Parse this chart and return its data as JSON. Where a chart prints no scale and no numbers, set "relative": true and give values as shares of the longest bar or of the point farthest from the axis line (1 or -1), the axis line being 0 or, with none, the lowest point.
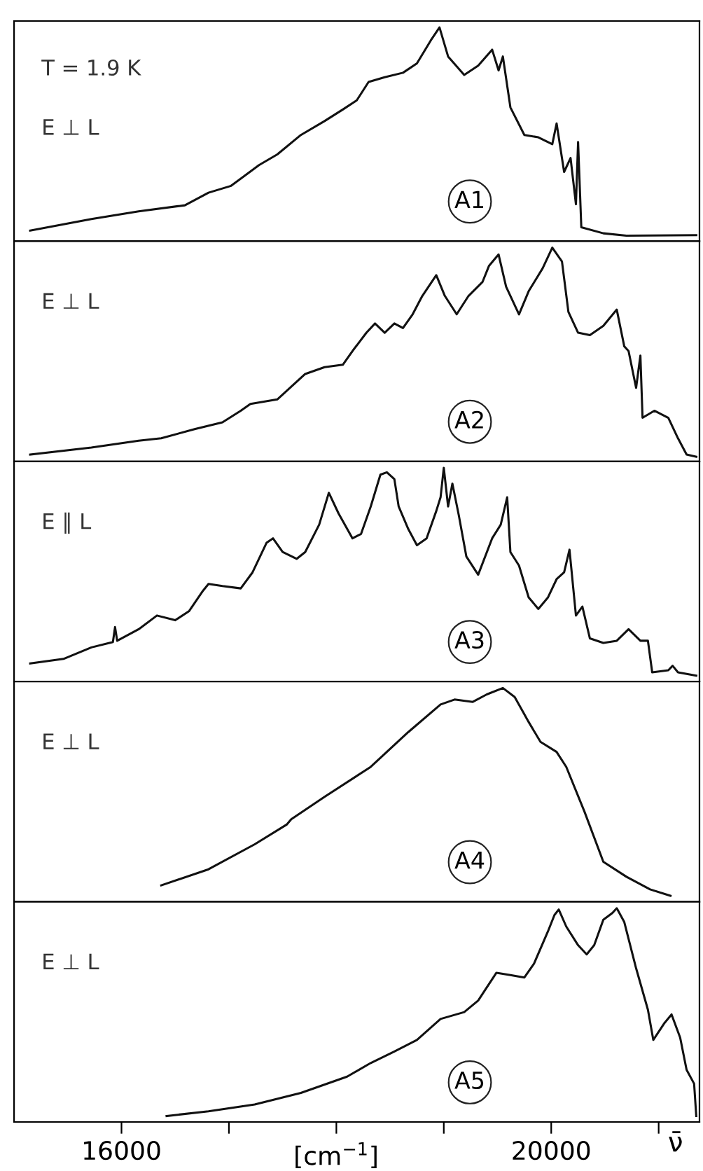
{
  "chart_data": [
    {
      "type": "line",
      "relative": true,
      "tick_labels": false,
      "xlim": [
        15000,
        21380
      ],
      "xticks": [
        {
          "value": 16000,
          "label": null
        },
        {
          "value": 17000,
          "label": null
        },
        {
          "value": 18000,
          "label": null
        },
        {
          "value": 19000,
          "label": null
        },
        {
          "value": 20000,
          "label": null
        },
        {
          "value": 21000,
          "label": null
        }
      ],
      "annotations": [
        "T = 1.9 K",
        "E ⊥ L",
        "A1"
      ],
      "series": [
        {
          "color": "#111111",
          "x": [
            15150,
            15720,
            16160,
            16590,
            16810,
            17020,
            17280,
            17450,
            17670,
            17890,
            18060,
            18190,
            18300,
            18450,
            18620,
            18750,
            18880,
            18960,
            19040,
            19190,
            19320,
            19450,
            19510,
            19550,
            19620,
            19750,
            19880,
            20010,
            20050,
            20120,
            20180,
            20230,
            20250,
            20280,
            20485,
            20700,
            21350
          ],
          "values": [
            0.05,
            0.104,
            0.14,
            0.168,
            0.227,
            0.259,
            0.356,
            0.406,
            0.497,
            0.562,
            0.616,
            0.659,
            0.745,
            0.767,
            0.788,
            0.832,
            0.94,
            1.0,
            0.864,
            0.778,
            0.821,
            0.896,
            0.799,
            0.864,
            0.626,
            0.497,
            0.486,
            0.454,
            0.551,
            0.324,
            0.389,
            0.173,
            0.464,
            0.065,
            0.037,
            0.026,
            0.028
          ]
        }
      ]
    },
    {
      "type": "line",
      "relative": true,
      "tick_labels": false,
      "xlim": [
        15000,
        21380
      ],
      "xticks": [
        {
          "value": 16000,
          "label": null
        },
        {
          "value": 17000,
          "label": null
        },
        {
          "value": 18000,
          "label": null
        },
        {
          "value": 19000,
          "label": null
        },
        {
          "value": 20000,
          "label": null
        },
        {
          "value": 21000,
          "label": null
        }
      ],
      "annotations": [
        "E ⊥ L",
        "A2"
      ],
      "series": [
        {
          "color": "#111111",
          "x": [
            15150,
            15720,
            16160,
            16370,
            16680,
            16940,
            17110,
            17200,
            17450,
            17710,
            17890,
            18060,
            18150,
            18280,
            18360,
            18450,
            18540,
            18620,
            18710,
            18800,
            18930,
            19010,
            19120,
            19230,
            19360,
            19420,
            19510,
            19580,
            19700,
            19790,
            19920,
            20010,
            20100,
            20160,
            20250,
            20360,
            20485,
            20610,
            20680,
            20720,
            20790,
            20830,
            20850,
            20960,
            21090,
            21180,
            21260,
            21350
          ],
          "values": [
            0.032,
            0.065,
            0.097,
            0.108,
            0.151,
            0.183,
            0.237,
            0.269,
            0.29,
            0.409,
            0.441,
            0.452,
            0.516,
            0.602,
            0.645,
            0.602,
            0.645,
            0.624,
            0.688,
            0.774,
            0.871,
            0.774,
            0.688,
            0.774,
            0.839,
            0.914,
            0.968,
            0.817,
            0.688,
            0.796,
            0.903,
            1.0,
            0.935,
            0.699,
            0.602,
            0.591,
            0.634,
            0.71,
            0.538,
            0.516,
            0.344,
            0.495,
            0.204,
            0.237,
            0.204,
            0.108,
            0.032,
            0.022
          ]
        }
      ]
    },
    {
      "type": "line",
      "relative": true,
      "tick_labels": false,
      "xlim": [
        15000,
        21380
      ],
      "xticks": [
        {
          "value": 16000,
          "label": null
        },
        {
          "value": 17000,
          "label": null
        },
        {
          "value": 18000,
          "label": null
        },
        {
          "value": 19000,
          "label": null
        },
        {
          "value": 20000,
          "label": null
        },
        {
          "value": 21000,
          "label": null
        }
      ],
      "annotations": [
        "E ∥ L",
        "A3"
      ],
      "series": [
        {
          "color": "#111111",
          "x": [
            15150,
            15460,
            15720,
            15920,
            15940,
            15960,
            16160,
            16330,
            16500,
            16630,
            16760,
            16810,
            16940,
            17110,
            17220,
            17350,
            17410,
            17500,
            17630,
            17710,
            17840,
            17930,
            18020,
            18150,
            18230,
            18320,
            18410,
            18470,
            18540,
            18580,
            18670,
            18750,
            18840,
            18930,
            18970,
            19000,
            19040,
            19080,
            19140,
            19210,
            19320,
            19450,
            19530,
            19590,
            19620,
            19700,
            19790,
            19880,
            19970,
            20050,
            20120,
            20170,
            20230,
            20290,
            20360,
            20485,
            20610,
            20720,
            20830,
            20900,
            20940,
            21090,
            21130,
            21180,
            21350
          ],
          "values": [
            0.085,
            0.106,
            0.16,
            0.185,
            0.255,
            0.191,
            0.245,
            0.309,
            0.287,
            0.33,
            0.426,
            0.457,
            0.447,
            0.436,
            0.511,
            0.649,
            0.67,
            0.606,
            0.574,
            0.606,
            0.734,
            0.883,
            0.787,
            0.67,
            0.691,
            0.819,
            0.968,
            0.979,
            0.947,
            0.819,
            0.713,
            0.638,
            0.67,
            0.798,
            0.862,
            1.0,
            0.819,
            0.926,
            0.777,
            0.585,
            0.5,
            0.67,
            0.734,
            0.862,
            0.606,
            0.543,
            0.394,
            0.34,
            0.394,
            0.479,
            0.511,
            0.617,
            0.309,
            0.351,
            0.202,
            0.181,
            0.191,
            0.245,
            0.191,
            0.191,
            0.043,
            0.053,
            0.074,
            0.043,
            0.028
          ]
        }
      ]
    },
    {
      "type": "line",
      "relative": true,
      "tick_labels": false,
      "xlim": [
        15000,
        21380
      ],
      "xticks": [
        {
          "value": 16000,
          "label": null
        },
        {
          "value": 17000,
          "label": null
        },
        {
          "value": 18000,
          "label": null
        },
        {
          "value": 19000,
          "label": null
        },
        {
          "value": 20000,
          "label": null
        },
        {
          "value": 21000,
          "label": null
        }
      ],
      "annotations": [
        "E ⊥ L",
        "A4"
      ],
      "series": [
        {
          "color": "#111111",
          "x": [
            16370,
            16810,
            17240,
            17540,
            17580,
            17890,
            18320,
            18670,
            18970,
            19100,
            19270,
            19400,
            19550,
            19660,
            19790,
            19900,
            20050,
            20140,
            20310,
            20485,
            20700,
            20920,
            21110
          ],
          "values": [
            0.077,
            0.152,
            0.269,
            0.362,
            0.386,
            0.491,
            0.631,
            0.794,
            0.923,
            0.946,
            0.935,
            0.97,
            1.0,
            0.958,
            0.841,
            0.748,
            0.701,
            0.631,
            0.421,
            0.187,
            0.117,
            0.058,
            0.028
          ]
        }
      ]
    },
    {
      "type": "line",
      "relative": true,
      "tick_labels": "x",
      "xlim": [
        15000,
        21380
      ],
      "xticks": [
        16000,
        {
          "value": 17000,
          "label": null
        },
        {
          "value": 18000,
          "label": null
        },
        {
          "value": 19000,
          "label": null
        },
        20000,
        {
          "value": 21000,
          "label": null
        }
      ],
      "xlabel": "[cm$^{−1}$]",
      "annotations": [
        "E ⊥ L",
        "A5",
        "ν̄"
      ],
      "series": [
        {
          "color": "#111111",
          "x": [
            16420,
            16810,
            17240,
            17670,
            18100,
            18320,
            18540,
            18750,
            18970,
            19190,
            19320,
            19490,
            19620,
            19750,
            19840,
            19970,
            20030,
            20070,
            20140,
            20250,
            20330,
            20400,
            20485,
            20570,
            20610,
            20680,
            20790,
            20900,
            20950,
            21050,
            21120,
            21200,
            21260,
            21330,
            21350
          ],
          "values": [
            0.028,
            0.05,
            0.082,
            0.136,
            0.212,
            0.276,
            0.33,
            0.384,
            0.482,
            0.514,
            0.568,
            0.698,
            0.687,
            0.676,
            0.741,
            0.892,
            0.968,
            0.994,
            0.914,
            0.827,
            0.784,
            0.827,
            0.946,
            0.978,
            1.0,
            0.935,
            0.719,
            0.525,
            0.384,
            0.46,
            0.503,
            0.395,
            0.244,
            0.179,
            0.028
          ]
        }
      ]
    }
  ]
}
